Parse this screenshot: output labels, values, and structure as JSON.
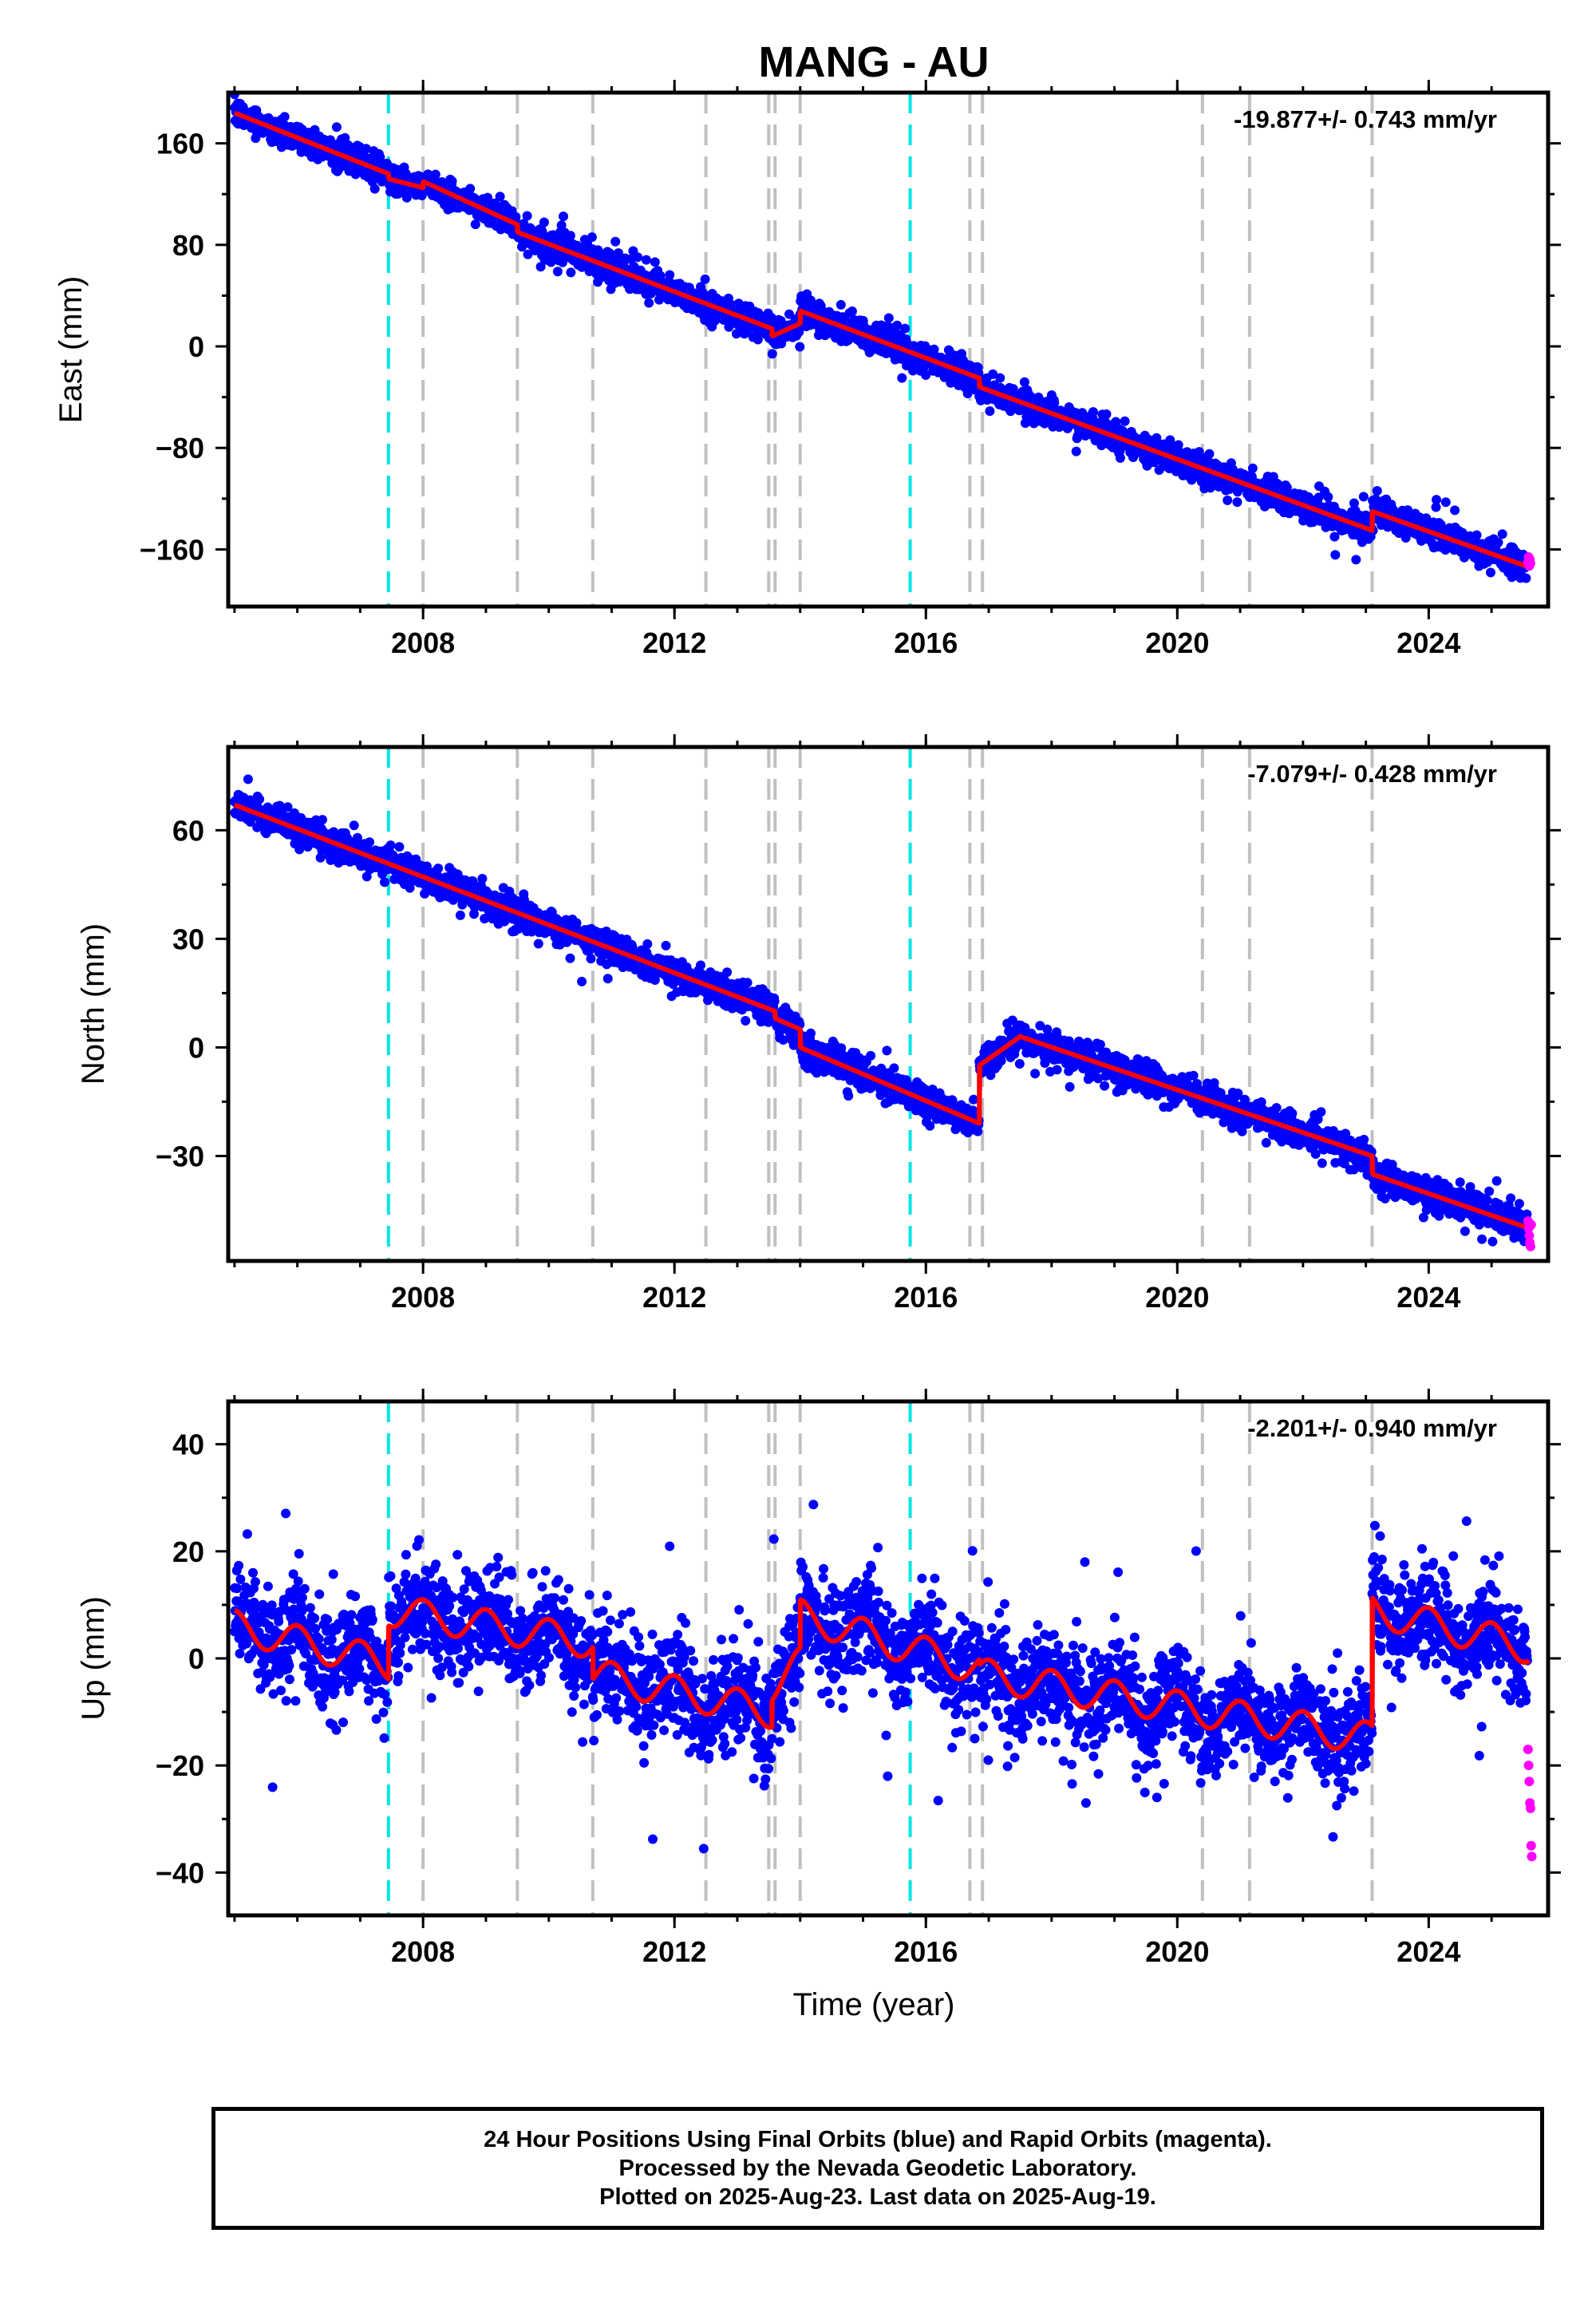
{
  "title": "MANG - AU",
  "xlabel": "Time (year)",
  "footer": {
    "line1": "24 Hour Positions Using Final Orbits (blue) and Rapid Orbits (magenta).",
    "line2": "Processed by the Nevada Geodetic Laboratory.",
    "line3": "Plotted on 2025-Aug-23. Last data on 2025-Aug-19."
  },
  "colors": {
    "final_points": "#0000ff",
    "rapid_points": "#ff00ff",
    "model_line": "#ff0000",
    "antenna_change_lines": "#00e5e5",
    "event_lines": "#c0c0c0"
  },
  "chart_data": [
    {
      "type": "scatter",
      "panel": "east",
      "ylabel": "East (mm)",
      "rate_label": "-19.877+/- 0.743 mm/yr",
      "xlim": [
        2004.9,
        2025.9
      ],
      "ylim": [
        -205,
        200
      ],
      "xticks": [
        2008,
        2012,
        2016,
        2020,
        2024
      ],
      "xtick_labels": [
        "2008",
        "2012",
        "2016",
        "2020",
        "2024"
      ],
      "yticks": [
        160,
        80,
        0,
        -80,
        -160
      ],
      "ytick_labels": [
        "160",
        "80",
        "0",
        "−80",
        "−160"
      ],
      "grid": false,
      "series": [
        {
          "name": "Final Orbits",
          "color": "#0000ff",
          "scatter_sd": 7,
          "point_spacing_years": 0.006
        },
        {
          "name": "Rapid Orbits",
          "color": "#ff00ff",
          "x": [
            2025.58,
            2025.59,
            2025.6,
            2025.61,
            2025.62
          ],
          "y": [
            -170,
            -166,
            -173,
            -168,
            -171
          ]
        },
        {
          "name": "Model",
          "color": "#ff0000",
          "x": [
            2005.0,
            2007.45,
            2007.45,
            2008.0,
            2008.0,
            2009.5,
            2009.5,
            2013.55,
            2013.55,
            2014.0,
            2014.0,
            2016.85,
            2016.85,
            2023.1,
            2023.1,
            2025.6
          ],
          "y": [
            184,
            136,
            132,
            125,
            130,
            96,
            90,
            14,
            8,
            18,
            28,
            -25,
            -32,
            -145,
            -130,
            -174
          ]
        }
      ]
    },
    {
      "type": "scatter",
      "panel": "north",
      "ylabel": "North (mm)",
      "rate_label": "-7.079+/- 0.428 mm/yr",
      "xlim": [
        2004.9,
        2025.9
      ],
      "ylim": [
        -59,
        83
      ],
      "xticks": [
        2008,
        2012,
        2016,
        2020,
        2024
      ],
      "xtick_labels": [
        "2008",
        "2012",
        "2016",
        "2020",
        "2024"
      ],
      "yticks": [
        60,
        30,
        0,
        -30
      ],
      "ytick_labels": [
        "60",
        "30",
        "0",
        "−30"
      ],
      "grid": false,
      "series": [
        {
          "name": "Final Orbits",
          "color": "#0000ff",
          "scatter_sd": 2.6,
          "point_spacing_years": 0.006
        },
        {
          "name": "Rapid Orbits",
          "color": "#ff00ff",
          "x": [
            2025.58,
            2025.59,
            2025.6,
            2025.61,
            2025.62,
            2025.63
          ],
          "y": [
            -48,
            -50,
            -52,
            -54,
            -55,
            -49
          ]
        },
        {
          "name": "Model",
          "color": "#ff0000",
          "x": [
            2005.0,
            2013.6,
            2013.6,
            2014.0,
            2014.0,
            2016.85,
            2016.85,
            2017.5,
            2023.1,
            2023.1,
            2025.6
          ],
          "y": [
            67,
            10,
            8,
            5,
            0,
            -21,
            -5,
            3,
            -30,
            -35,
            -50
          ]
        }
      ]
    },
    {
      "type": "scatter",
      "panel": "up",
      "ylabel": "Up (mm)",
      "rate_label": "-2.201+/- 0.940 mm/yr",
      "xlim": [
        2004.9,
        2025.9
      ],
      "ylim": [
        -48,
        48
      ],
      "xticks": [
        2008,
        2012,
        2016,
        2020,
        2024
      ],
      "xtick_labels": [
        "2008",
        "2012",
        "2016",
        "2020",
        "2024"
      ],
      "yticks": [
        40,
        20,
        0,
        -20,
        -40
      ],
      "ytick_labels": [
        "40",
        "20",
        "0",
        "−20",
        "−40"
      ],
      "grid": false,
      "series": [
        {
          "name": "Final Orbits",
          "color": "#0000ff",
          "scatter_sd": 6,
          "point_spacing_years": 0.006
        },
        {
          "name": "Rapid Orbits",
          "color": "#ff00ff",
          "x": [
            2025.58,
            2025.59,
            2025.6,
            2025.61,
            2025.62,
            2025.63,
            2025.64
          ],
          "y": [
            -17,
            -20,
            -23,
            -27,
            -28,
            -35,
            -37
          ]
        },
        {
          "name": "Model",
          "color": "#ff0000",
          "seasonal_amplitude": 3,
          "x": [
            2005.0,
            2007.45,
            2007.45,
            2010.7,
            2010.7,
            2013.55,
            2013.55,
            2014.0,
            2014.0,
            2016.85,
            2016.85,
            2023.1,
            2023.1,
            2025.6
          ],
          "y": [
            6,
            -1,
            9,
            3,
            -3,
            -10,
            -5,
            -1,
            8,
            -2,
            -3,
            -15,
            9,
            2
          ]
        }
      ]
    }
  ],
  "event_lines": {
    "antenna_changes": [
      2007.45,
      2015.75
    ],
    "other_events": [
      2008.0,
      2009.5,
      2010.7,
      2012.5,
      2013.5,
      2013.6,
      2014.0,
      2016.7,
      2016.9,
      2020.4,
      2021.15,
      2023.1
    ]
  }
}
